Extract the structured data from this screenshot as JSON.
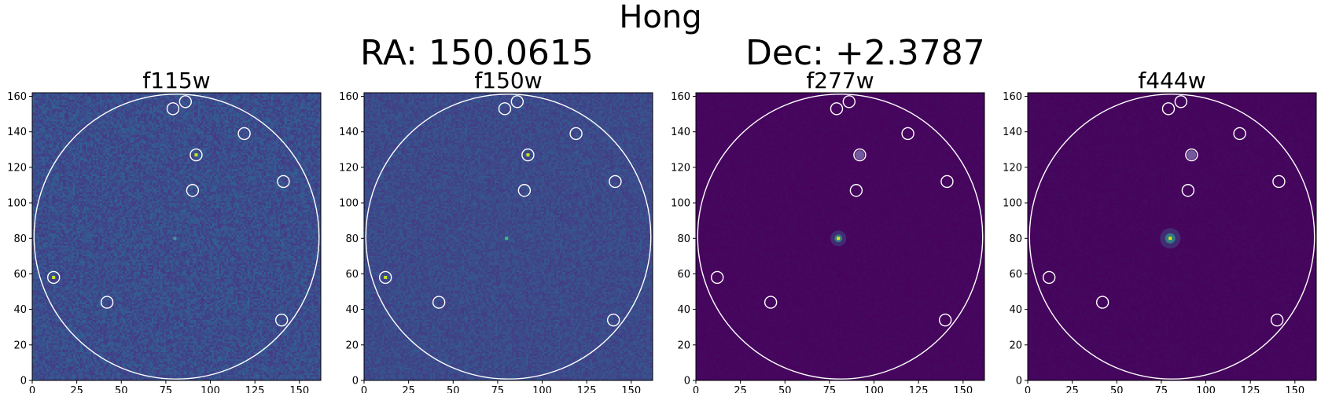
{
  "figure": {
    "title": "Hong",
    "ra_label": "RA: 150.0615",
    "dec_label": "Dec: +2.3787"
  },
  "chart_data": [
    {
      "type": "heatmap",
      "title": "f115w",
      "xlim": [
        0,
        162
      ],
      "ylim": [
        0,
        162
      ],
      "xticks": [
        0,
        25,
        50,
        75,
        100,
        125,
        150
      ],
      "yticks": [
        0,
        20,
        40,
        60,
        80,
        100,
        120,
        140,
        160
      ],
      "grid": false,
      "background_color": "#3b4d8c",
      "noise_level": 0.55,
      "aperture": {
        "x": 81,
        "y": 81,
        "r": 80
      },
      "central_source": {
        "x": 80,
        "y": 80,
        "brightness": 0.25,
        "halo": 0
      },
      "markers": [
        {
          "x": 79,
          "y": 153
        },
        {
          "x": 86,
          "y": 157
        },
        {
          "x": 119,
          "y": 139
        },
        {
          "x": 92,
          "y": 127,
          "source": 1.0
        },
        {
          "x": 141,
          "y": 112
        },
        {
          "x": 90,
          "y": 107
        },
        {
          "x": 12,
          "y": 58,
          "source": 1.0
        },
        {
          "x": 42,
          "y": 44
        },
        {
          "x": 140,
          "y": 34
        }
      ]
    },
    {
      "type": "heatmap",
      "title": "f150w",
      "xlim": [
        0,
        162
      ],
      "ylim": [
        0,
        162
      ],
      "xticks": [
        0,
        25,
        50,
        75,
        100,
        125,
        150
      ],
      "yticks": [
        0,
        20,
        40,
        60,
        80,
        100,
        120,
        140,
        160
      ],
      "grid": false,
      "background_color": "#3c4a8a",
      "noise_level": 0.4,
      "aperture": {
        "x": 81,
        "y": 81,
        "r": 80
      },
      "central_source": {
        "x": 80,
        "y": 80,
        "brightness": 0.6,
        "halo": 0
      },
      "markers": [
        {
          "x": 79,
          "y": 153
        },
        {
          "x": 86,
          "y": 157
        },
        {
          "x": 119,
          "y": 139
        },
        {
          "x": 92,
          "y": 127,
          "source": 0.9
        },
        {
          "x": 141,
          "y": 112
        },
        {
          "x": 90,
          "y": 107
        },
        {
          "x": 12,
          "y": 58,
          "source": 0.9
        },
        {
          "x": 42,
          "y": 44
        },
        {
          "x": 140,
          "y": 34
        }
      ]
    },
    {
      "type": "heatmap",
      "title": "f277w",
      "xlim": [
        0,
        162
      ],
      "ylim": [
        0,
        162
      ],
      "xticks": [
        0,
        25,
        50,
        75,
        100,
        125,
        150
      ],
      "yticks": [
        0,
        20,
        40,
        60,
        80,
        100,
        120,
        140,
        160
      ],
      "grid": false,
      "background_color": "#46065e",
      "noise_level": 0.1,
      "aperture": {
        "x": 81,
        "y": 81,
        "r": 80
      },
      "central_source": {
        "x": 80,
        "y": 80,
        "brightness": 1.0,
        "halo": 1
      },
      "markers": [
        {
          "x": 79,
          "y": 153
        },
        {
          "x": 86,
          "y": 157
        },
        {
          "x": 119,
          "y": 139
        },
        {
          "x": 92,
          "y": 127,
          "source": 0.25
        },
        {
          "x": 141,
          "y": 112
        },
        {
          "x": 90,
          "y": 107
        },
        {
          "x": 12,
          "y": 58
        },
        {
          "x": 42,
          "y": 44
        },
        {
          "x": 140,
          "y": 34
        }
      ]
    },
    {
      "type": "heatmap",
      "title": "f444w",
      "xlim": [
        0,
        162
      ],
      "ylim": [
        0,
        162
      ],
      "xticks": [
        0,
        25,
        50,
        75,
        100,
        125,
        150
      ],
      "yticks": [
        0,
        20,
        40,
        60,
        80,
        100,
        120,
        140,
        160
      ],
      "grid": false,
      "background_color": "#45065d",
      "noise_level": 0.1,
      "aperture": {
        "x": 81,
        "y": 81,
        "r": 80
      },
      "central_source": {
        "x": 80,
        "y": 80,
        "brightness": 1.0,
        "halo": 1.3
      },
      "markers": [
        {
          "x": 79,
          "y": 153
        },
        {
          "x": 86,
          "y": 157
        },
        {
          "x": 119,
          "y": 139
        },
        {
          "x": 92,
          "y": 127,
          "source": 0.3
        },
        {
          "x": 141,
          "y": 112
        },
        {
          "x": 90,
          "y": 107
        },
        {
          "x": 12,
          "y": 58
        },
        {
          "x": 42,
          "y": 44
        },
        {
          "x": 140,
          "y": 34
        }
      ]
    }
  ]
}
